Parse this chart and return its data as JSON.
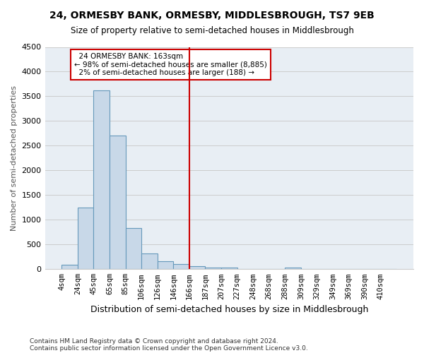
{
  "title": "24, ORMESBY BANK, ORMESBY, MIDDLESBROUGH, TS7 9EB",
  "subtitle": "Size of property relative to semi-detached houses in Middlesbrough",
  "xlabel": "Distribution of semi-detached houses by size in Middlesbrough",
  "ylabel": "Number of semi-detached properties",
  "bar_color": "#c8d8e8",
  "bar_edgecolor": "#6699bb",
  "bin_labels": [
    "4sqm",
    "24sqm",
    "45sqm",
    "65sqm",
    "85sqm",
    "106sqm",
    "126sqm",
    "146sqm",
    "166sqm",
    "187sqm",
    "207sqm",
    "227sqm",
    "248sqm",
    "268sqm",
    "288sqm",
    "309sqm",
    "329sqm",
    "349sqm",
    "369sqm",
    "390sqm",
    "410sqm"
  ],
  "bar_values": [
    90,
    1250,
    3620,
    2700,
    840,
    320,
    155,
    100,
    60,
    40,
    30,
    0,
    0,
    0,
    35,
    0,
    0,
    0,
    0,
    0,
    0
  ],
  "vline_x": 8,
  "vline_color": "#cc0000",
  "property_label": "24 ORMESBY BANK: 163sqm",
  "pct_smaller": "98%",
  "n_smaller": "8,885",
  "pct_larger": "2%",
  "n_larger": "188",
  "annotation_box_color": "#cc0000",
  "ylim": [
    0,
    4500
  ],
  "yticks": [
    0,
    500,
    1000,
    1500,
    2000,
    2500,
    3000,
    3500,
    4000,
    4500
  ],
  "background_color": "#e8eef4",
  "footnote1": "Contains HM Land Registry data © Crown copyright and database right 2024.",
  "footnote2": "Contains public sector information licensed under the Open Government Licence v3.0."
}
